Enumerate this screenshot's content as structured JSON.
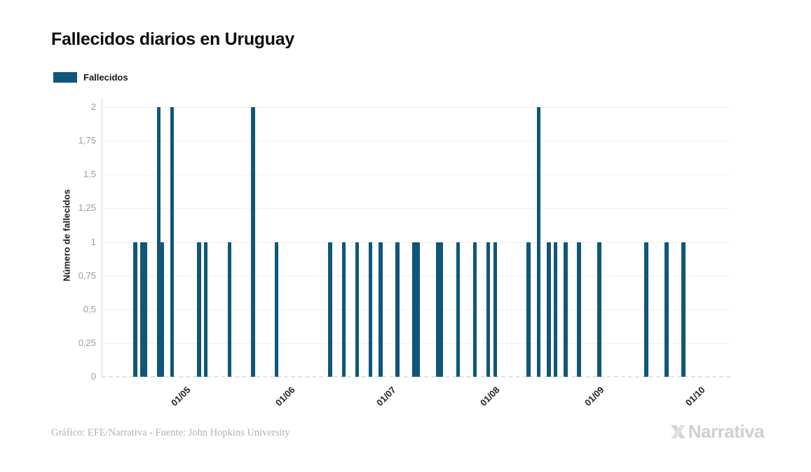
{
  "title": "Fallecidos diarios en Uruguay",
  "legend": {
    "label": "Fallecidos",
    "color": "#10567a"
  },
  "footer": {
    "credit": "Gráfico: EFE/Narrativa - Fuente: John Hopkins University"
  },
  "logo": {
    "text": "Narrativa",
    "icon": "narrativa-n-mark",
    "color": "#d0d0d0"
  },
  "chart_data": {
    "type": "bar",
    "title": "Fallecidos diarios en Uruguay",
    "series_name": "Fallecidos",
    "xlabel": "",
    "ylabel": "Número de fallecidos",
    "ylim": [
      0,
      2
    ],
    "bar_color": "#10567a",
    "grid": "horizontal",
    "legend_position": "top-left",
    "x_domain": [
      "07/04",
      "11/10"
    ],
    "y_ticks": [
      {
        "value": 0,
        "label": "0"
      },
      {
        "value": 0.25,
        "label": "0,25"
      },
      {
        "value": 0.5,
        "label": "0,5"
      },
      {
        "value": 0.75,
        "label": "0,75"
      },
      {
        "value": 1,
        "label": "1"
      },
      {
        "value": 1.25,
        "label": "1,25"
      },
      {
        "value": 1.5,
        "label": "1,5"
      },
      {
        "value": 1.75,
        "label": "1,75"
      },
      {
        "value": 2,
        "label": "2"
      }
    ],
    "x_ticks": [
      {
        "date": "01/05",
        "label": "01/05"
      },
      {
        "date": "01/06",
        "label": "01/06"
      },
      {
        "date": "01/07",
        "label": "01/07"
      },
      {
        "date": "01/08",
        "label": "01/08"
      },
      {
        "date": "01/09",
        "label": "01/09"
      },
      {
        "date": "01/10",
        "label": "01/10"
      }
    ],
    "points": [
      {
        "date": "17/04",
        "value": 1
      },
      {
        "date": "19/04",
        "value": 1
      },
      {
        "date": "20/04",
        "value": 1
      },
      {
        "date": "24/04",
        "value": 2
      },
      {
        "date": "25/04",
        "value": 1
      },
      {
        "date": "28/04",
        "value": 2
      },
      {
        "date": "06/05",
        "value": 1
      },
      {
        "date": "08/05",
        "value": 1
      },
      {
        "date": "15/05",
        "value": 1
      },
      {
        "date": "22/05",
        "value": 2
      },
      {
        "date": "29/05",
        "value": 1
      },
      {
        "date": "14/06",
        "value": 1
      },
      {
        "date": "18/06",
        "value": 1
      },
      {
        "date": "22/06",
        "value": 1
      },
      {
        "date": "26/06",
        "value": 1
      },
      {
        "date": "29/06",
        "value": 1
      },
      {
        "date": "04/07",
        "value": 1
      },
      {
        "date": "09/07",
        "value": 1
      },
      {
        "date": "10/07",
        "value": 1
      },
      {
        "date": "16/07",
        "value": 1
      },
      {
        "date": "17/07",
        "value": 1
      },
      {
        "date": "22/07",
        "value": 1
      },
      {
        "date": "27/07",
        "value": 1
      },
      {
        "date": "31/07",
        "value": 1
      },
      {
        "date": "02/08",
        "value": 1
      },
      {
        "date": "12/08",
        "value": 1
      },
      {
        "date": "15/08",
        "value": 2
      },
      {
        "date": "18/08",
        "value": 1
      },
      {
        "date": "20/08",
        "value": 1
      },
      {
        "date": "23/08",
        "value": 1
      },
      {
        "date": "27/08",
        "value": 1
      },
      {
        "date": "02/09",
        "value": 1
      },
      {
        "date": "16/09",
        "value": 1
      },
      {
        "date": "22/09",
        "value": 1
      },
      {
        "date": "27/09",
        "value": 1
      }
    ]
  }
}
